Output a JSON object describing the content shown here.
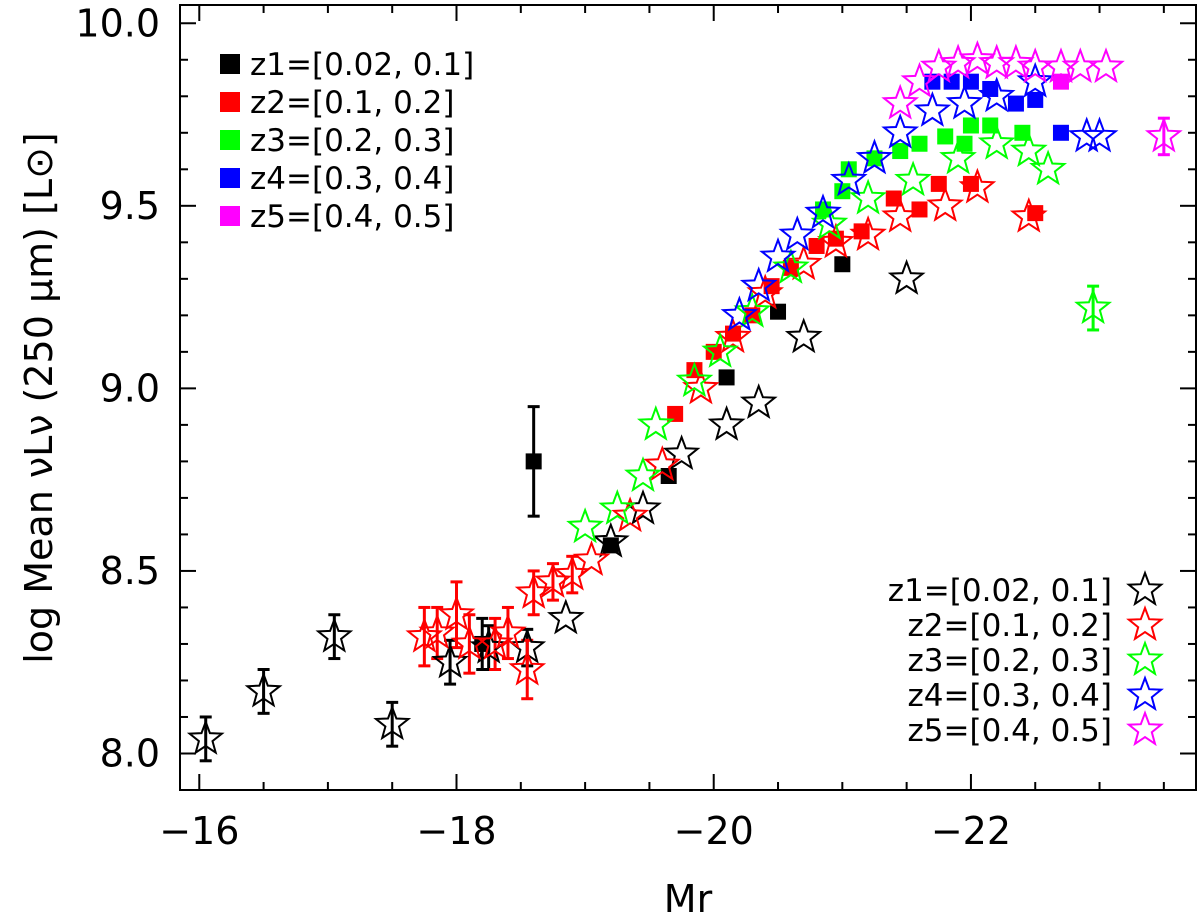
{
  "chart_data": {
    "type": "scatter",
    "title": "",
    "xlabel": "Mr",
    "ylabel": "log Mean νLν (250 μm) [L⊙]",
    "xlim": [
      -15.85,
      -23.75
    ],
    "ylim": [
      7.9,
      10.05
    ],
    "xticks": [
      -16,
      -18,
      -20,
      -22
    ],
    "xtick_labels": [
      "−16",
      "−18",
      "−20",
      "−22"
    ],
    "yticks": [
      8.0,
      8.5,
      9.0,
      9.5,
      10.0
    ],
    "ytick_labels": [
      "8.0",
      "8.5",
      "9.0",
      "9.5",
      "10.0"
    ],
    "legend_squares": {
      "position": "top-left",
      "entries": [
        {
          "series": "z1",
          "label": "z1=[0.02, 0.1]",
          "color": "#000000"
        },
        {
          "series": "z2",
          "label": "z2=[0.1, 0.2]",
          "color": "#ff0000"
        },
        {
          "series": "z3",
          "label": "z3=[0.2, 0.3]",
          "color": "#00ff00"
        },
        {
          "series": "z4",
          "label": "z4=[0.3, 0.4]",
          "color": "#0000ff"
        },
        {
          "series": "z5",
          "label": "z5=[0.4, 0.5]",
          "color": "#ff00ff"
        }
      ]
    },
    "legend_stars": {
      "position": "bottom-right",
      "entries": [
        {
          "series": "z1",
          "label": "z1=[0.02, 0.1]",
          "color": "#000000"
        },
        {
          "series": "z2",
          "label": "z2=[0.1, 0.2]",
          "color": "#ff0000"
        },
        {
          "series": "z3",
          "label": "z3=[0.2, 0.3]",
          "color": "#00ff00"
        },
        {
          "series": "z4",
          "label": "z4=[0.3, 0.4]",
          "color": "#0000ff"
        },
        {
          "series": "z5",
          "label": "z5=[0.4, 0.5]",
          "color": "#ff00ff"
        }
      ]
    },
    "series": [
      {
        "name": "z1",
        "marker": "square",
        "color": "#000000",
        "points": [
          {
            "x": -18.2,
            "y": 8.3,
            "err": 0.07
          },
          {
            "x": -18.6,
            "y": 8.8,
            "err": 0.15
          },
          {
            "x": -19.2,
            "y": 8.57
          },
          {
            "x": -19.65,
            "y": 8.76
          },
          {
            "x": -20.1,
            "y": 9.03
          },
          {
            "x": -20.5,
            "y": 9.21
          },
          {
            "x": -21.0,
            "y": 9.34
          }
        ]
      },
      {
        "name": "z2",
        "marker": "square",
        "color": "#ff0000",
        "points": [
          {
            "x": -19.7,
            "y": 8.93
          },
          {
            "x": -19.85,
            "y": 9.05
          },
          {
            "x": -20.0,
            "y": 9.1
          },
          {
            "x": -20.15,
            "y": 9.15
          },
          {
            "x": -20.3,
            "y": 9.2
          },
          {
            "x": -20.45,
            "y": 9.28
          },
          {
            "x": -20.6,
            "y": 9.33
          },
          {
            "x": -20.8,
            "y": 9.39
          },
          {
            "x": -20.95,
            "y": 9.41
          },
          {
            "x": -21.15,
            "y": 9.43
          },
          {
            "x": -21.4,
            "y": 9.52
          },
          {
            "x": -21.6,
            "y": 9.49
          },
          {
            "x": -21.75,
            "y": 9.56
          },
          {
            "x": -22.0,
            "y": 9.56
          },
          {
            "x": -22.5,
            "y": 9.48
          }
        ]
      },
      {
        "name": "z3",
        "marker": "square",
        "color": "#00ff00",
        "points": [
          {
            "x": -20.85,
            "y": 9.49
          },
          {
            "x": -21.0,
            "y": 9.54
          },
          {
            "x": -21.05,
            "y": 9.6
          },
          {
            "x": -21.25,
            "y": 9.63
          },
          {
            "x": -21.45,
            "y": 9.65
          },
          {
            "x": -21.6,
            "y": 9.67
          },
          {
            "x": -21.8,
            "y": 9.69
          },
          {
            "x": -21.95,
            "y": 9.67
          },
          {
            "x": -22.0,
            "y": 9.72
          },
          {
            "x": -22.15,
            "y": 9.72
          },
          {
            "x": -22.4,
            "y": 9.7
          }
        ]
      },
      {
        "name": "z4",
        "marker": "square",
        "color": "#0000ff",
        "points": [
          {
            "x": -21.7,
            "y": 9.84
          },
          {
            "x": -21.85,
            "y": 9.84
          },
          {
            "x": -22.0,
            "y": 9.84
          },
          {
            "x": -22.15,
            "y": 9.82
          },
          {
            "x": -22.35,
            "y": 9.78
          },
          {
            "x": -22.5,
            "y": 9.79
          },
          {
            "x": -22.7,
            "y": 9.7
          }
        ]
      },
      {
        "name": "z5",
        "marker": "square",
        "color": "#ff00ff",
        "points": [
          {
            "x": -22.7,
            "y": 9.84
          }
        ]
      },
      {
        "name": "z1",
        "marker": "star",
        "color": "#000000",
        "points": [
          {
            "x": -16.05,
            "y": 8.04,
            "err": 0.06
          },
          {
            "x": -16.5,
            "y": 8.17,
            "err": 0.06
          },
          {
            "x": -17.05,
            "y": 8.32,
            "err": 0.06
          },
          {
            "x": -17.5,
            "y": 8.08,
            "err": 0.06
          },
          {
            "x": -17.95,
            "y": 8.25,
            "err": 0.06
          },
          {
            "x": -18.25,
            "y": 8.29,
            "err": 0.06
          },
          {
            "x": -18.55,
            "y": 8.29,
            "err": 0.05
          },
          {
            "x": -18.85,
            "y": 8.37
          },
          {
            "x": -19.2,
            "y": 8.58
          },
          {
            "x": -19.45,
            "y": 8.67
          },
          {
            "x": -19.75,
            "y": 8.82
          },
          {
            "x": -20.1,
            "y": 8.9
          },
          {
            "x": -20.35,
            "y": 8.96
          },
          {
            "x": -20.7,
            "y": 9.14
          },
          {
            "x": -21.5,
            "y": 9.3
          }
        ]
      },
      {
        "name": "z2",
        "marker": "star",
        "color": "#ff0000",
        "points": [
          {
            "x": -17.75,
            "y": 8.32,
            "err": 0.08
          },
          {
            "x": -17.85,
            "y": 8.33,
            "err": 0.07
          },
          {
            "x": -18.0,
            "y": 8.38,
            "err": 0.09
          },
          {
            "x": -18.1,
            "y": 8.3,
            "err": 0.08
          },
          {
            "x": -18.3,
            "y": 8.3,
            "err": 0.07
          },
          {
            "x": -18.4,
            "y": 8.33,
            "err": 0.07
          },
          {
            "x": -18.55,
            "y": 8.23,
            "err": 0.08
          },
          {
            "x": -18.6,
            "y": 8.44,
            "err": 0.06
          },
          {
            "x": -18.75,
            "y": 8.47,
            "err": 0.05
          },
          {
            "x": -18.9,
            "y": 8.49,
            "err": 0.05
          },
          {
            "x": -19.05,
            "y": 8.53
          },
          {
            "x": -19.35,
            "y": 8.65
          },
          {
            "x": -19.6,
            "y": 8.79
          },
          {
            "x": -19.9,
            "y": 9.0
          },
          {
            "x": -20.15,
            "y": 9.14
          },
          {
            "x": -20.4,
            "y": 9.26
          },
          {
            "x": -20.7,
            "y": 9.34
          },
          {
            "x": -20.95,
            "y": 9.4
          },
          {
            "x": -21.2,
            "y": 9.42
          },
          {
            "x": -21.45,
            "y": 9.47
          },
          {
            "x": -21.8,
            "y": 9.5
          },
          {
            "x": -22.05,
            "y": 9.55
          },
          {
            "x": -22.45,
            "y": 9.47
          }
        ]
      },
      {
        "name": "z3",
        "marker": "star",
        "color": "#00ff00",
        "points": [
          {
            "x": -19.0,
            "y": 8.62
          },
          {
            "x": -19.25,
            "y": 8.67
          },
          {
            "x": -19.45,
            "y": 8.76
          },
          {
            "x": -19.55,
            "y": 8.9
          },
          {
            "x": -19.85,
            "y": 9.02
          },
          {
            "x": -20.05,
            "y": 9.1
          },
          {
            "x": -20.3,
            "y": 9.21
          },
          {
            "x": -20.6,
            "y": 9.33
          },
          {
            "x": -20.9,
            "y": 9.45
          },
          {
            "x": -21.2,
            "y": 9.52
          },
          {
            "x": -21.55,
            "y": 9.57
          },
          {
            "x": -21.9,
            "y": 9.63
          },
          {
            "x": -22.2,
            "y": 9.67
          },
          {
            "x": -22.45,
            "y": 9.65
          },
          {
            "x": -22.6,
            "y": 9.6
          },
          {
            "x": -22.95,
            "y": 9.22,
            "err": 0.06
          }
        ]
      },
      {
        "name": "z4",
        "marker": "star",
        "color": "#0000ff",
        "points": [
          {
            "x": -20.2,
            "y": 9.2
          },
          {
            "x": -20.35,
            "y": 9.28
          },
          {
            "x": -20.5,
            "y": 9.36
          },
          {
            "x": -20.65,
            "y": 9.42
          },
          {
            "x": -20.85,
            "y": 9.48
          },
          {
            "x": -21.05,
            "y": 9.57
          },
          {
            "x": -21.25,
            "y": 9.63
          },
          {
            "x": -21.45,
            "y": 9.7
          },
          {
            "x": -21.7,
            "y": 9.76
          },
          {
            "x": -21.95,
            "y": 9.78
          },
          {
            "x": -22.2,
            "y": 9.8
          },
          {
            "x": -22.5,
            "y": 9.84
          },
          {
            "x": -22.9,
            "y": 9.69
          },
          {
            "x": -23.0,
            "y": 9.69
          }
        ]
      },
      {
        "name": "z5",
        "marker": "star",
        "color": "#ff00ff",
        "points": [
          {
            "x": -21.45,
            "y": 9.78
          },
          {
            "x": -21.6,
            "y": 9.84
          },
          {
            "x": -21.75,
            "y": 9.88
          },
          {
            "x": -21.9,
            "y": 9.89
          },
          {
            "x": -22.05,
            "y": 9.9
          },
          {
            "x": -22.2,
            "y": 9.89
          },
          {
            "x": -22.35,
            "y": 9.89
          },
          {
            "x": -22.5,
            "y": 9.88
          },
          {
            "x": -22.7,
            "y": 9.88
          },
          {
            "x": -22.85,
            "y": 9.88
          },
          {
            "x": -23.05,
            "y": 9.88
          },
          {
            "x": -23.5,
            "y": 9.69,
            "err": 0.05
          }
        ]
      }
    ]
  }
}
